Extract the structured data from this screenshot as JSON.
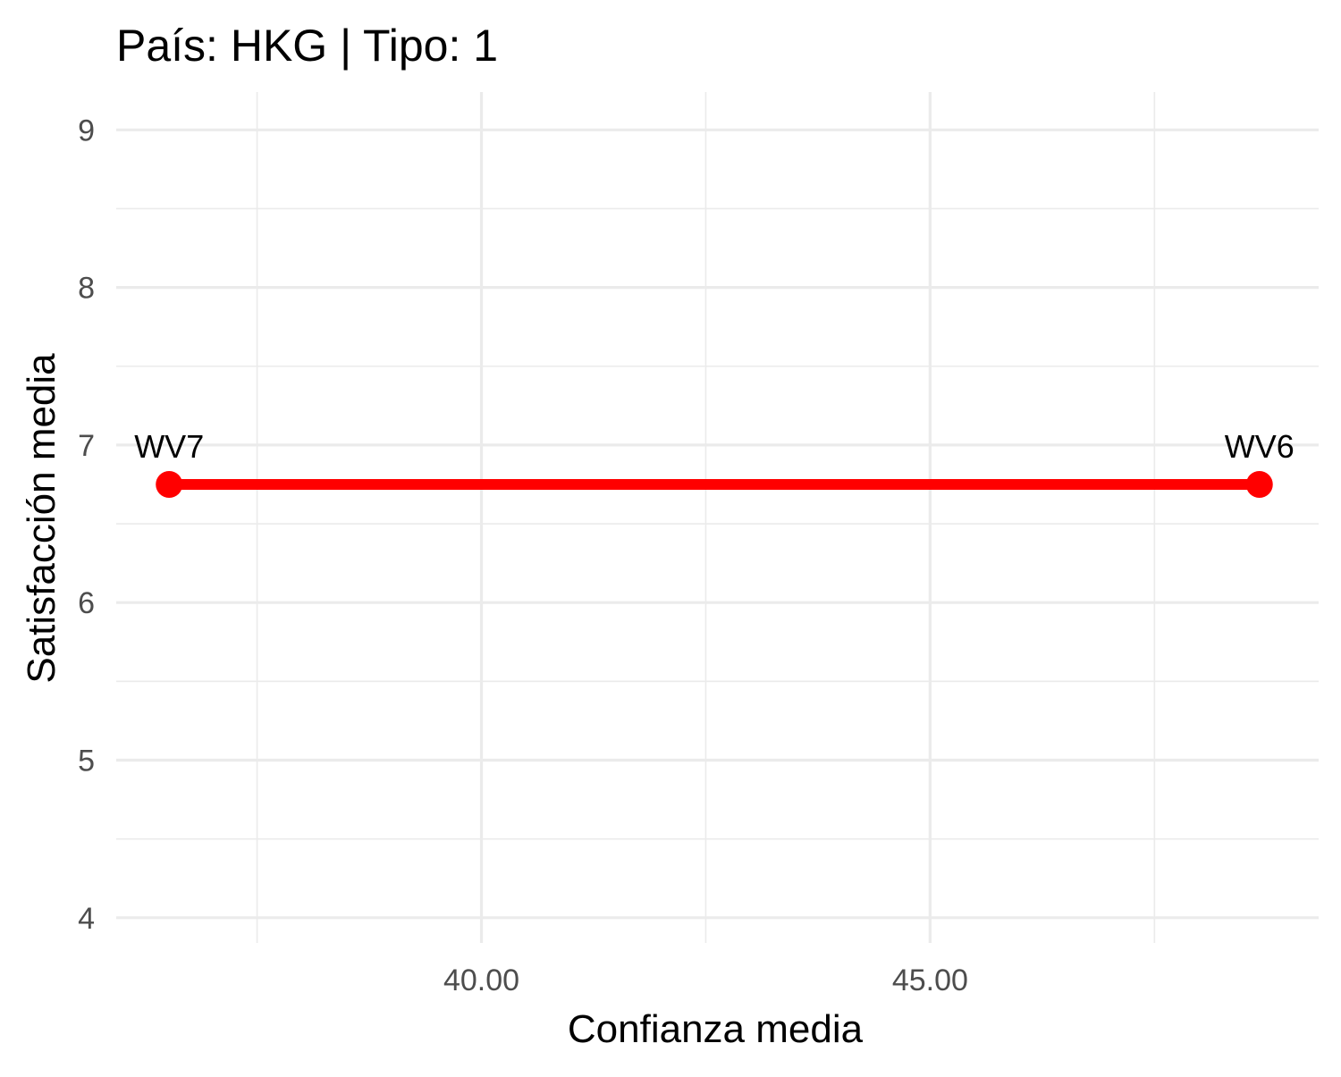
{
  "chart_data": {
    "type": "line",
    "title": "País: HKG | Tipo: 1",
    "xlabel": "Confianza media",
    "ylabel": "Satisfacción media",
    "xlim": [
      35.93,
      49.33
    ],
    "ylim": [
      3.84,
      9.24
    ],
    "x_ticks": [
      40,
      45
    ],
    "x_tick_labels": [
      "40.00",
      "45.00"
    ],
    "x_minor_ticks": [
      37.5,
      42.5,
      47.5
    ],
    "y_ticks": [
      4,
      5,
      6,
      7,
      8,
      9
    ],
    "y_tick_labels": [
      "4",
      "5",
      "6",
      "7",
      "8",
      "9"
    ],
    "y_minor_ticks": [
      4.5,
      5.5,
      6.5,
      7.5,
      8.5
    ],
    "grid": true,
    "legend": "none",
    "series": [
      {
        "color": "#ff0000",
        "points": [
          {
            "label": "WV7",
            "x": 36.52,
            "y": 6.75
          },
          {
            "label": "WV6",
            "x": 48.67,
            "y": 6.75
          }
        ]
      }
    ]
  }
}
